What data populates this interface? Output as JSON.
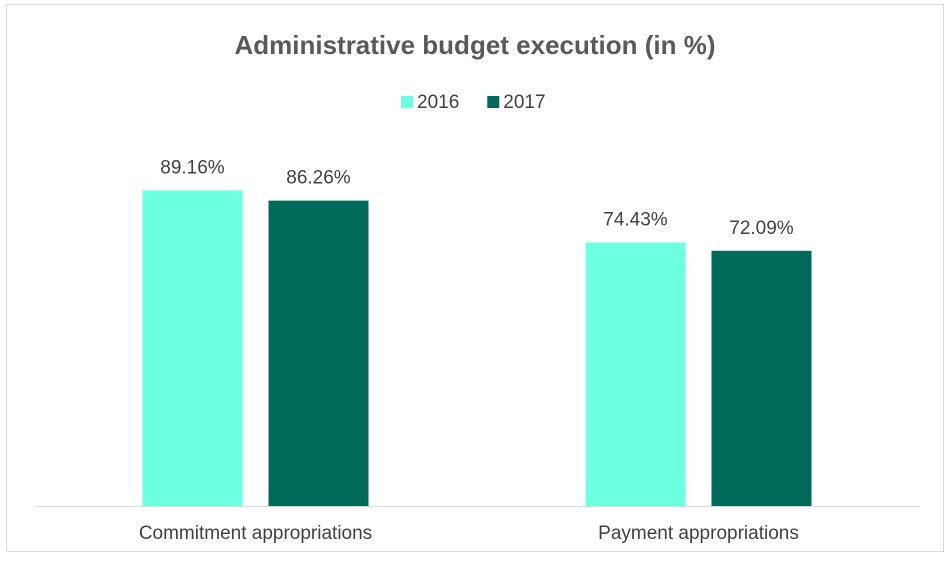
{
  "chart_data": {
    "type": "bar",
    "title": "Administrative budget execution (in %)",
    "categories": [
      "Commitment appropriations",
      "Payment appropriations"
    ],
    "series": [
      {
        "name": "2016",
        "color": "#6cffe0",
        "values": [
          89.16,
          74.43
        ],
        "value_labels": [
          "89.16%",
          "74.43%"
        ]
      },
      {
        "name": "2017",
        "color": "#00695a",
        "values": [
          86.26,
          72.09
        ],
        "value_labels": [
          "86.26%",
          "72.09%"
        ]
      }
    ],
    "ylim": [
      0,
      100
    ],
    "legend": "top"
  }
}
